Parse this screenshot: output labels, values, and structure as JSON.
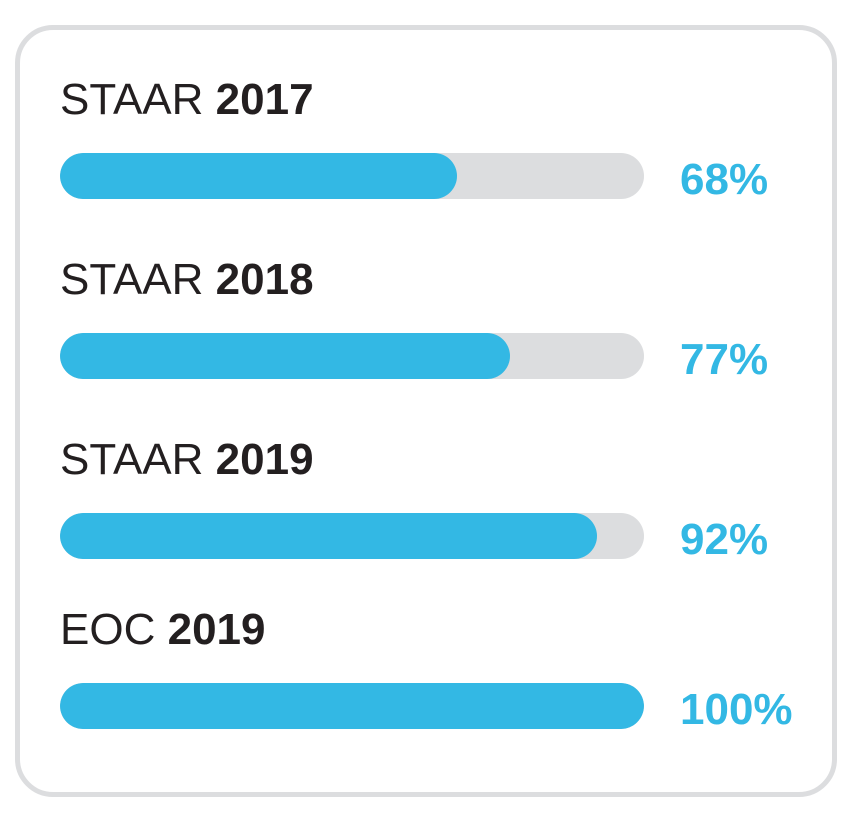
{
  "colors": {
    "bar_fill": "#33b8e4",
    "bar_track": "#dcdddf",
    "card_border": "#dcdddf",
    "label_text": "#231f20",
    "percent_text": "#33b8e4"
  },
  "chart_data": {
    "type": "bar",
    "orientation": "horizontal",
    "unit": "%",
    "xlim": [
      0,
      100
    ],
    "grid": false,
    "legend": "none",
    "categories": [
      "STAAR 2017",
      "STAAR 2018",
      "STAAR 2019",
      "EOC 2019"
    ],
    "values": [
      68,
      77,
      92,
      100
    ],
    "rows": [
      {
        "prefix": "STAAR",
        "year": "2017",
        "value": 68,
        "value_label": "68%"
      },
      {
        "prefix": "STAAR",
        "year": "2018",
        "value": 77,
        "value_label": "77%"
      },
      {
        "prefix": "STAAR",
        "year": "2019",
        "value": 92,
        "value_label": "92%"
      },
      {
        "prefix": "EOC",
        "year": "2019",
        "value": 100,
        "value_label": "100%"
      }
    ]
  }
}
